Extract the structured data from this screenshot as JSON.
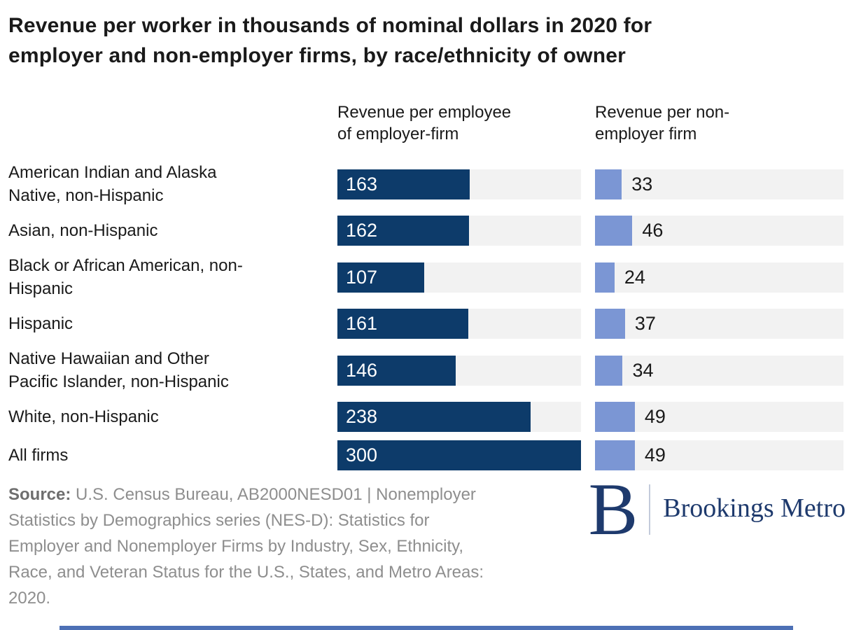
{
  "title": "Revenue per worker in thousands of nominal dollars in 2020 for\nemployer and non-employer firms, by race/ethnicity of owner",
  "columns": [
    {
      "header": "Revenue per employee\nof employer-firm"
    },
    {
      "header": "Revenue per non-\nemployer firm"
    }
  ],
  "rows": [
    {
      "label": "American Indian and Alaska\nNative, non-Hispanic",
      "employer": 163,
      "nonemployer": 33
    },
    {
      "label": "Asian, non-Hispanic",
      "employer": 162,
      "nonemployer": 46
    },
    {
      "label": "Black or African American, non-\nHispanic",
      "employer": 107,
      "nonemployer": 24
    },
    {
      "label": "Hispanic",
      "employer": 161,
      "nonemployer": 37
    },
    {
      "label": "Native Hawaiian and Other\nPacific Islander, non-Hispanic",
      "employer": 146,
      "nonemployer": 34
    },
    {
      "label": "White, non-Hispanic",
      "employer": 238,
      "nonemployer": 49
    },
    {
      "label": "All firms",
      "employer": 300,
      "nonemployer": 49
    }
  ],
  "chart_data": {
    "type": "bar",
    "title": "Revenue per worker in thousands of nominal dollars in 2020 for employer and non-employer firms, by race/ethnicity of owner",
    "categories": [
      "American Indian and Alaska Native, non-Hispanic",
      "Asian, non-Hispanic",
      "Black or African American, non-Hispanic",
      "Hispanic",
      "Native Hawaiian and Other Pacific Islander, non-Hispanic",
      "White, non-Hispanic",
      "All firms"
    ],
    "series": [
      {
        "name": "Revenue per employee of employer-firm",
        "values": [
          163,
          162,
          107,
          161,
          146,
          238,
          300
        ]
      },
      {
        "name": "Revenue per non-employer firm",
        "values": [
          33,
          46,
          24,
          37,
          34,
          49,
          49
        ]
      }
    ],
    "xlabel": "",
    "ylabel": "",
    "xlim": [
      0,
      300
    ],
    "grid": false,
    "legend_position": "column-headers",
    "orientation": "horizontal",
    "value_labels": true,
    "colors": {
      "employer_bar": "#0d3b6a",
      "nonemployer_bar": "#7b96d4",
      "track": "#f2f2f2",
      "value_label_on_bar": "#ffffff",
      "value_label_off_bar": "#1a1a1a"
    }
  },
  "source": {
    "label": "Source:",
    "text": "U.S. Census Bureau, AB2000NESD01 | Nonemployer\nStatistics by Demographics series (NES-D): Statistics for\nEmployer and Nonemployer Firms by Industry, Sex, Ethnicity,\nRace, and Veteran Status for the U.S., States, and Metro Areas:\n2020."
  },
  "logo": {
    "mark": "B",
    "text": "Brookings Metro",
    "color": "#1e3a6d"
  },
  "footer_bar_color": "#4d70b5"
}
